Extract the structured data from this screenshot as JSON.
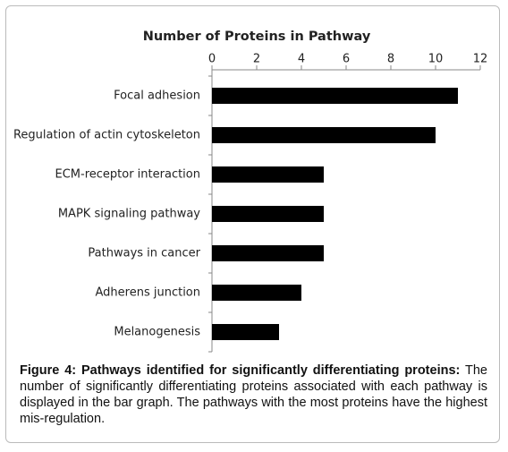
{
  "chart_data": {
    "type": "barh",
    "title": "Number of Proteins in Pathway",
    "categories": [
      "Focal adhesion",
      "Regulation of actin cytoskeleton",
      "ECM-receptor interaction",
      "MAPK signaling pathway",
      "Pathways in cancer",
      "Adherens junction",
      "Melanogenesis"
    ],
    "values": [
      11,
      10,
      5,
      5,
      5,
      4,
      3
    ],
    "color": "#000000",
    "xlim": [
      0,
      12
    ],
    "xticks": [
      0,
      2,
      4,
      6,
      8,
      10,
      12
    ],
    "grid": false
  },
  "caption_title": "Figure 4: Pathways identified for significantly differentiating proteins:",
  "caption_text": "The number of significantly differentiating proteins associated with each pathway is displayed in the bar graph. The pathways with the most proteins have the highest mis-regulation."
}
